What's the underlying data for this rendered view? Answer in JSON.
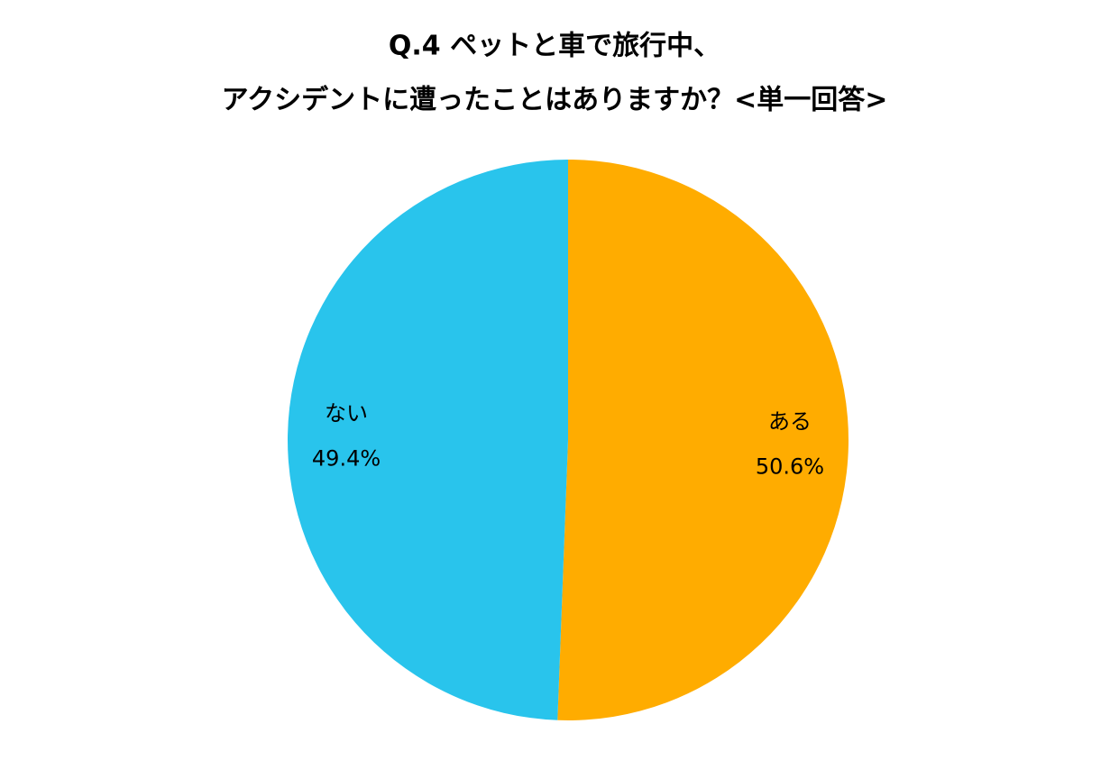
{
  "chart_data": {
    "type": "pie",
    "title": [
      "Q.4 ペットと車で旅行中、",
      "アクシデントに遭ったことはありますか？<単一回答>"
    ],
    "categories": [
      "ある",
      "ない"
    ],
    "values": [
      50.6,
      49.4
    ],
    "value_labels": [
      "50.6%",
      "49.4%"
    ],
    "colors": [
      "#ffac00",
      "#29c4ec"
    ]
  }
}
